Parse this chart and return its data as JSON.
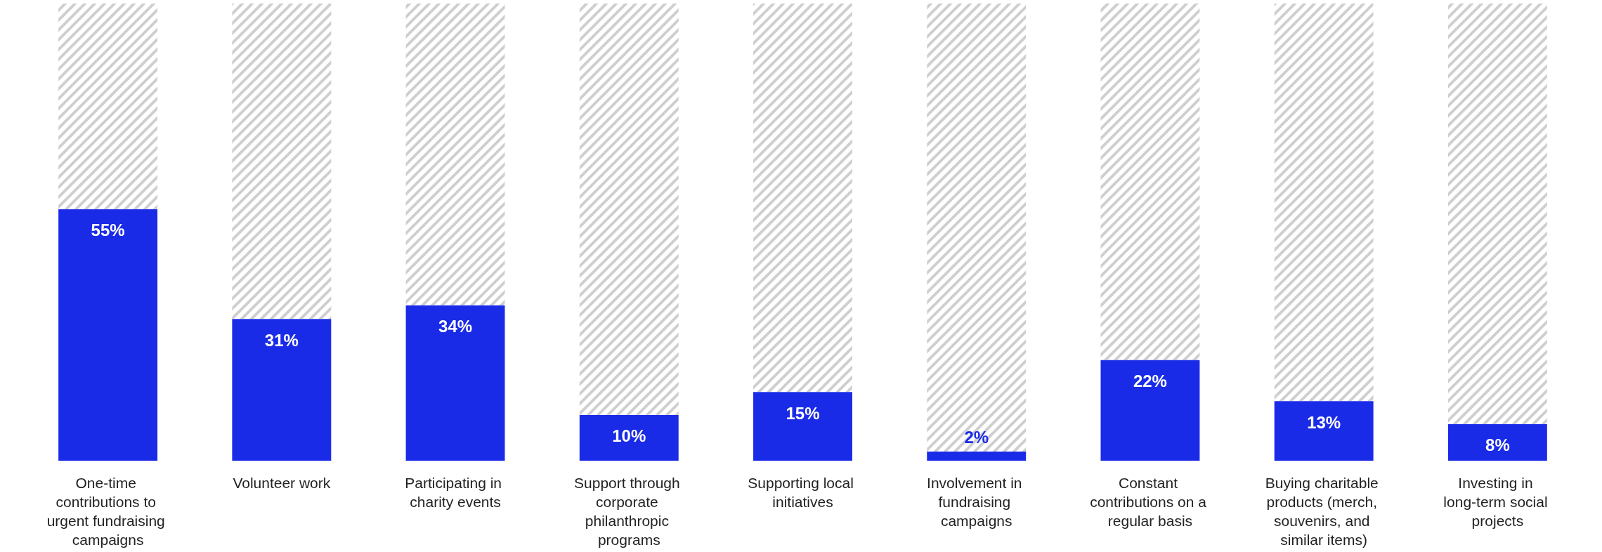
{
  "chart_data": {
    "type": "bar",
    "categories": [
      "One-time contributions to urgent fundraising campaigns",
      "Volunteer work",
      "Participating in charity events",
      "Support through corporate philanthropic programs",
      "Supporting local initiatives",
      "Involvement in fundraising campaigns",
      "Constant contributions on a regular basis",
      "Buying charitable products (merch, souvenirs, and similar items)",
      "Investing in long-term social projects"
    ],
    "stacked": true,
    "series": [
      {
        "color": "#1a2be8",
        "values": [
          55,
          31,
          34,
          10,
          15,
          2,
          22,
          13,
          8
        ],
        "value_labels": [
          "55%",
          "31%",
          "34%",
          "10%",
          "15%",
          "2%",
          "22%",
          "13%",
          "8%"
        ]
      },
      {
        "color": "#cfcfcf",
        "values": [
          45,
          69,
          66,
          90,
          85,
          98,
          78,
          87,
          92
        ]
      }
    ]
  }
}
